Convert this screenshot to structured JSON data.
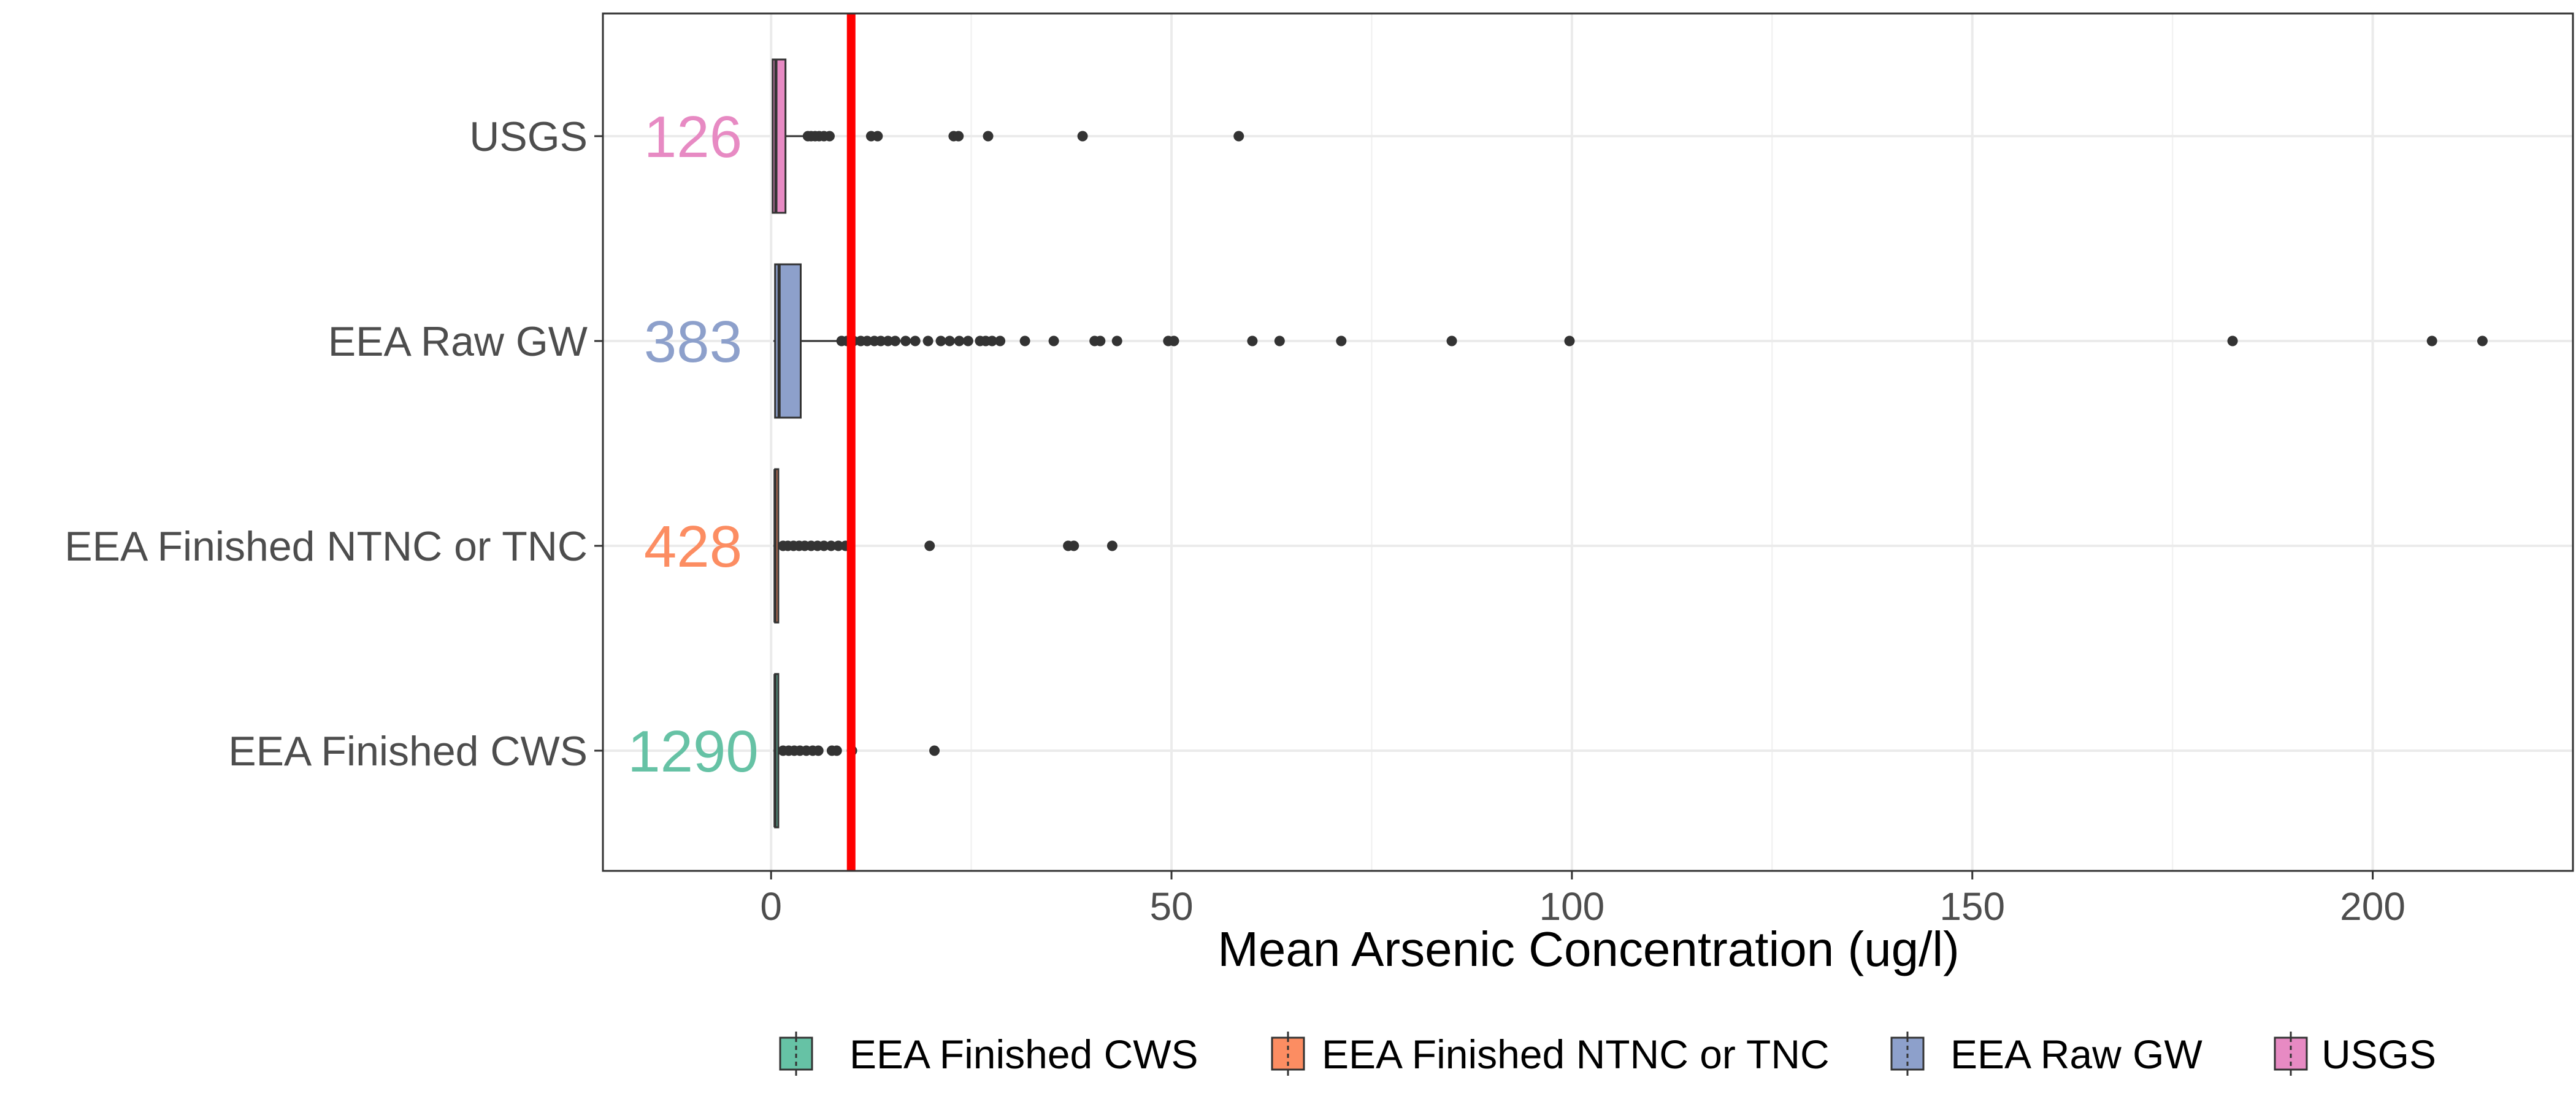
{
  "chart_data": {
    "type": "boxplot",
    "orientation": "horizontal",
    "xlabel": "Mean Arsenic Concentration (ug/l)",
    "ylabel": "",
    "xlim": [
      -21,
      225
    ],
    "x_ticks": [
      0,
      50,
      100,
      150,
      200
    ],
    "grid": true,
    "legend_position": "bottom",
    "reference_line": {
      "x": 10,
      "color": "#ff0000"
    },
    "categories": [
      "USGS",
      "EEA Raw GW",
      "EEA Finished NTNC or TNC",
      "EEA Finished CWS"
    ],
    "series": [
      {
        "name": "USGS",
        "color": "#e78ac3",
        "count_label": "126",
        "box": {
          "min": 0.2,
          "q1": 0.2,
          "median": 0.6,
          "q3": 1.8,
          "max": 4.3
        },
        "outliers": [
          4.6,
          5.0,
          5.5,
          6.0,
          6.6,
          7.3,
          12.5,
          13.3,
          22.8,
          23.4,
          27.1,
          38.9,
          58.4
        ]
      },
      {
        "name": "EEA Raw GW",
        "color": "#8da0cb",
        "count_label": "383",
        "box": {
          "min": 0.3,
          "q1": 0.5,
          "median": 1.0,
          "q3": 3.7,
          "max": 8.5
        },
        "outliers": [
          8.8,
          9.5,
          10.3,
          11.2,
          12.0,
          12.9,
          13.7,
          14.6,
          15.5,
          16.8,
          18.0,
          19.6,
          21.2,
          22.3,
          23.5,
          24.6,
          26.1,
          26.8,
          27.6,
          28.6,
          31.7,
          35.3,
          40.4,
          41.1,
          43.2,
          49.6,
          50.3,
          60.1,
          63.5,
          71.2,
          85.0,
          99.7,
          182.5,
          207.4,
          213.7
        ]
      },
      {
        "name": "EEA Finished NTNC or TNC",
        "color": "#fc8d62",
        "count_label": "428",
        "box": {
          "min": 0.3,
          "q1": 0.5,
          "median": 0.5,
          "q3": 0.9,
          "max": 1.1
        },
        "outliers": [
          1.5,
          2.1,
          2.8,
          3.5,
          4.2,
          5.0,
          5.8,
          6.6,
          7.5,
          8.4,
          9.3,
          9.8,
          19.8,
          37.1,
          37.8,
          42.6
        ]
      },
      {
        "name": "EEA Finished CWS",
        "color": "#66c2a5",
        "count_label": "1290",
        "box": {
          "min": 0.3,
          "q1": 0.5,
          "median": 0.5,
          "q3": 0.9,
          "max": 1.1
        },
        "outliers": [
          1.5,
          2.2,
          2.9,
          3.6,
          4.4,
          5.2,
          5.9,
          7.6,
          8.2,
          10.1,
          20.4
        ]
      }
    ],
    "legend": [
      "EEA Finished CWS",
      "EEA Finished NTNC or TNC",
      "EEA Raw GW",
      "USGS"
    ]
  }
}
